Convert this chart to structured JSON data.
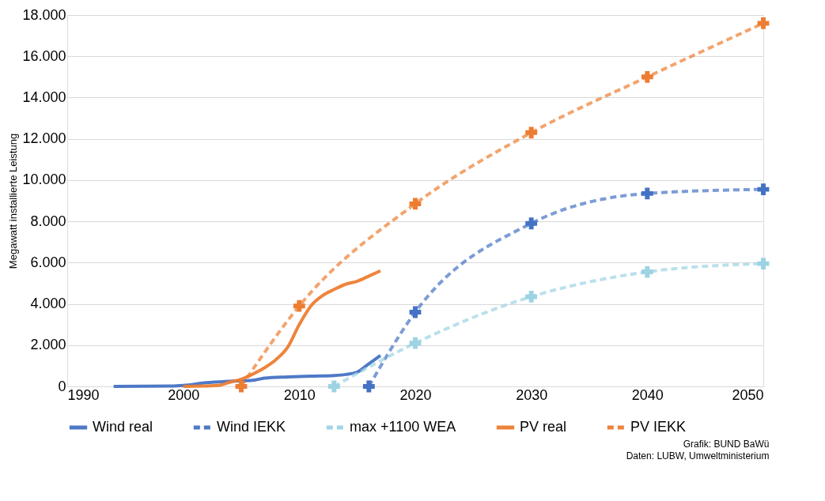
{
  "chart_data": {
    "type": "line",
    "ylabel": "Megawatt installierte Leistung",
    "xlim": [
      1990,
      2050
    ],
    "xticks": [
      1990,
      2000,
      2010,
      2020,
      2030,
      2040,
      2050
    ],
    "ylim": [
      0,
      18000
    ],
    "yticks": [
      {
        "value": 0,
        "label": "0"
      },
      {
        "value": 2000,
        "label": "2.000"
      },
      {
        "value": 4000,
        "label": "4.000"
      },
      {
        "value": 6000,
        "label": "6.000"
      },
      {
        "value": 8000,
        "label": "8.000"
      },
      {
        "value": 10000,
        "label": "10.000"
      },
      {
        "value": 12000,
        "label": "12.000"
      },
      {
        "value": 14000,
        "label": "14.000"
      },
      {
        "value": 16000,
        "label": "16.000"
      },
      {
        "value": 18000,
        "label": "18.000"
      }
    ],
    "grid": "y",
    "legend": "bottom",
    "series": [
      {
        "name": "Wind real",
        "color": "#4472c4",
        "line_style": "solid",
        "marker": "none",
        "x": [
          1994,
          1999,
          2000,
          2002,
          2004,
          2006,
          2007,
          2009,
          2011,
          2013,
          2014,
          2015,
          2016,
          2017
        ],
        "values": [
          0,
          20,
          50,
          180,
          250,
          300,
          400,
          460,
          500,
          530,
          580,
          700,
          1100,
          1500
        ]
      },
      {
        "name": "Wind IEKK",
        "color": "#4472c4",
        "line_style": "dashed",
        "marker": "cross",
        "x": [
          2016,
          2020,
          2030,
          2040,
          2050
        ],
        "values": [
          0,
          3600,
          7900,
          9350,
          9550
        ]
      },
      {
        "name": "max +1100 WEA",
        "color": "#9dd3e3",
        "line_style": "dashed",
        "marker": "cross",
        "x": [
          2013,
          2020,
          2030,
          2040,
          2050
        ],
        "values": [
          0,
          2100,
          4350,
          5550,
          5950
        ]
      },
      {
        "name": "PV real",
        "color": "#ed7d31",
        "line_style": "solid",
        "marker": "none",
        "x": [
          2000,
          2003,
          2004,
          2005,
          2006,
          2007,
          2008,
          2009,
          2010,
          2011,
          2012,
          2013,
          2014,
          2015,
          2016,
          2017
        ],
        "values": [
          0,
          50,
          200,
          350,
          600,
          900,
          1300,
          1900,
          3000,
          3900,
          4400,
          4700,
          4950,
          5100,
          5350,
          5600
        ]
      },
      {
        "name": "PV IEKK",
        "color": "#ed7d31",
        "line_style": "dashed",
        "marker": "cross",
        "x": [
          2005,
          2010,
          2020,
          2030,
          2040,
          2050
        ],
        "values": [
          0,
          3900,
          8850,
          12300,
          15000,
          17600
        ]
      }
    ],
    "annotations": [
      "Grafik: BUND BaWü",
      "Daten: LUBW, Umweltministerium"
    ]
  }
}
